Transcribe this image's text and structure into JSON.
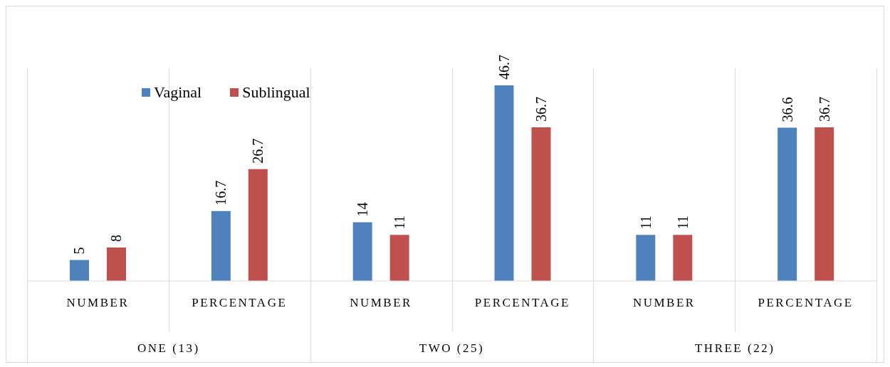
{
  "chart_data": {
    "type": "bar",
    "categories": [
      "NUMBER",
      "PERCENTAGE",
      "NUMBER",
      "PERCENTAGE",
      "NUMBER",
      "PERCENTAGE"
    ],
    "series": [
      {
        "name": "Vaginal",
        "color": "#4f81bd",
        "values": [
          5,
          16.7,
          14,
          46.7,
          11,
          36.6
        ]
      },
      {
        "name": "Sublingual",
        "color": "#c0504d",
        "values": [
          8,
          26.7,
          11,
          36.7,
          11,
          36.7
        ]
      }
    ],
    "annotations": [
      "ONE (13)",
      "TWO (25)",
      "THREE (22)"
    ],
    "data_labels": true,
    "legend": "top left"
  }
}
